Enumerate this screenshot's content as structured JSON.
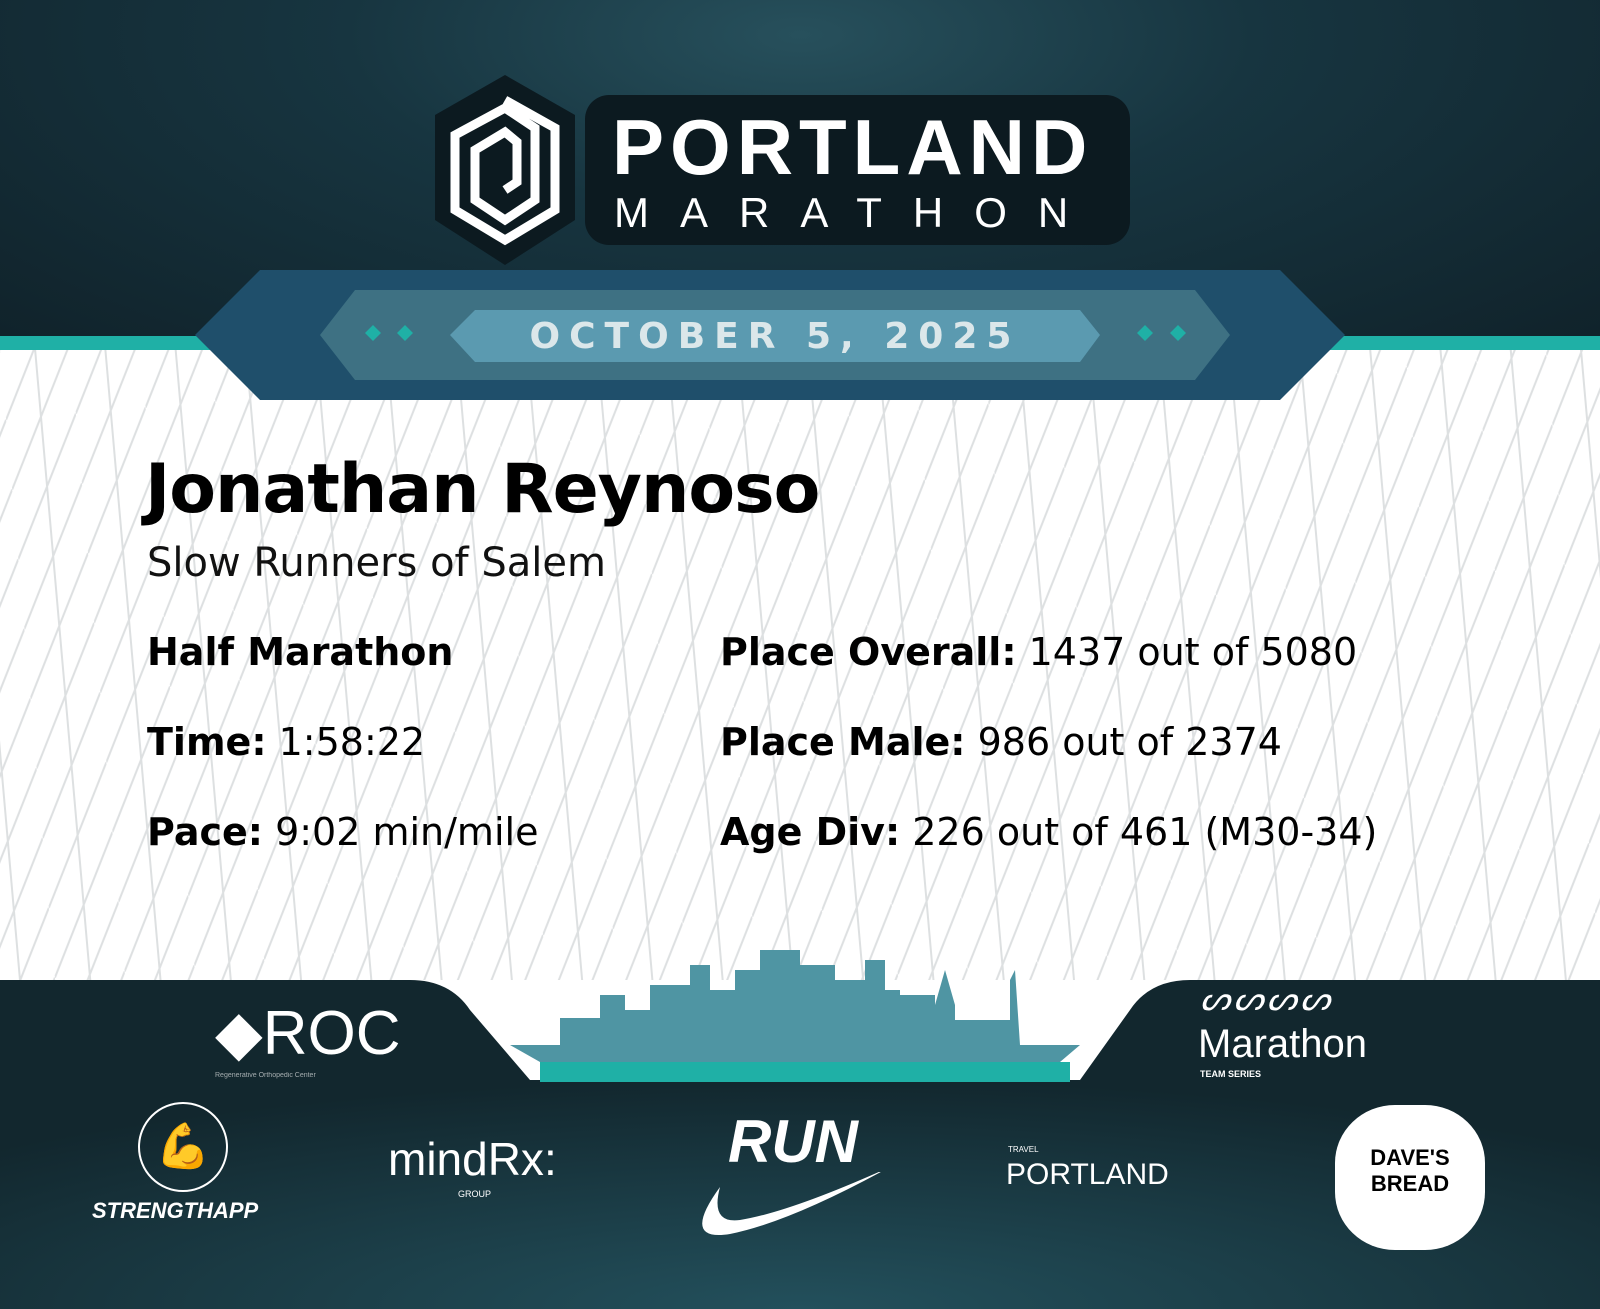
{
  "event": {
    "logo_line1": "PORTLAND",
    "logo_line2": "MARATHON",
    "date": "OCTOBER 5, 2025"
  },
  "runner": {
    "name": "Jonathan Reynoso",
    "team": "Slow Runners of Salem"
  },
  "results": {
    "race": "Half Marathon",
    "time_label": "Time:",
    "time": "1:58:22",
    "pace_label": "Pace:",
    "pace": "9:02 min/mile",
    "overall_label": "Place Overall:",
    "overall": "1437 out of 5080",
    "male_label": "Place Male:",
    "male": "986 out of 2374",
    "age_label": "Age Div:",
    "age": "226 out of 461 (M30-34)"
  },
  "sponsors": {
    "roc": "ROC",
    "roc_sub": "Regenerative Orthopedic Center",
    "marathon_series": "Marathon",
    "marathon_series_sub": "TEAM SERIES",
    "strengthapp": "STRENGTHAPP",
    "mindrx": "mindRx",
    "mindrx_sub": "GROUP",
    "nike": "RUN",
    "travel": "TRAVEL",
    "travel_portland": "PORTLAND",
    "daves": "DAVE'S BREAD"
  },
  "colors": {
    "dark": "#10222a",
    "teal": "#1fb0a6",
    "banner": "#1f4f6b",
    "skyline": "#4f95a3"
  }
}
